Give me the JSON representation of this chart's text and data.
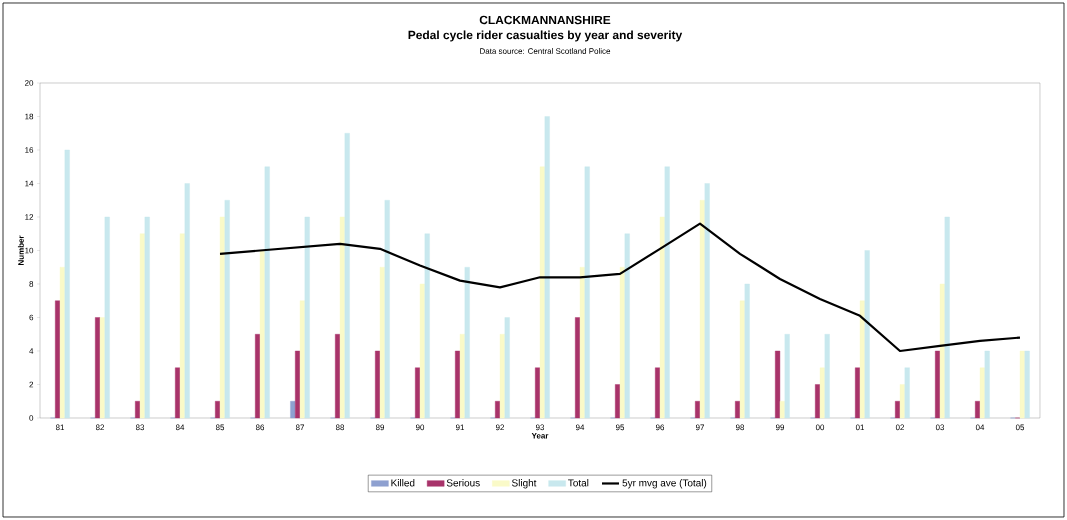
{
  "chart_data": {
    "type": "bar",
    "title": "CLACKMANNANSHIRE",
    "subtitle": "Pedal cycle rider casualties by year and severity",
    "annotations": [
      "Data source: Central Scotland Police"
    ],
    "xlabel": "Year",
    "ylabel": "Number",
    "categories": [
      "81",
      "82",
      "83",
      "84",
      "85",
      "86",
      "87",
      "88",
      "89",
      "90",
      "91",
      "92",
      "93",
      "94",
      "95",
      "96",
      "97",
      "98",
      "99",
      "00",
      "01",
      "02",
      "03",
      "04",
      "05"
    ],
    "series": [
      {
        "name": "Killed",
        "color": "#8ea0d0",
        "values": [
          0,
          0,
          0,
          0,
          0,
          0,
          1,
          0,
          0,
          0,
          0,
          0,
          0,
          0,
          0,
          0,
          0,
          0,
          0,
          0,
          0,
          0,
          0,
          0,
          0
        ]
      },
      {
        "name": "Serious",
        "color": "#a8336a",
        "values": [
          7,
          6,
          1,
          3,
          1,
          5,
          4,
          5,
          4,
          3,
          4,
          1,
          3,
          6,
          2,
          3,
          1,
          1,
          4,
          2,
          3,
          1,
          4,
          1,
          0
        ]
      },
      {
        "name": "Slight",
        "color": "#fafac8",
        "values": [
          9,
          6,
          11,
          11,
          12,
          10,
          7,
          12,
          9,
          8,
          5,
          5,
          15,
          9,
          9,
          12,
          13,
          7,
          1,
          3,
          7,
          2,
          8,
          3,
          4
        ]
      },
      {
        "name": "Total",
        "color": "#c8e8ee",
        "values": [
          16,
          12,
          12,
          14,
          13,
          15,
          12,
          17,
          13,
          11,
          9,
          6,
          18,
          15,
          11,
          15,
          14,
          8,
          5,
          5,
          10,
          3,
          12,
          4,
          4
        ]
      },
      {
        "name": "5yr mvg ave (Total)",
        "type": "line",
        "color": "#000000",
        "values": [
          null,
          null,
          null,
          null,
          9.8,
          10.0,
          10.2,
          10.4,
          10.1,
          9.1,
          8.2,
          7.8,
          8.4,
          8.4,
          8.6,
          10.1,
          11.6,
          9.8,
          8.3,
          7.1,
          6.1,
          4.0,
          4.3,
          4.6,
          4.8
        ]
      }
    ],
    "ylim": [
      0,
      20
    ],
    "yticks": [
      0,
      2,
      4,
      6,
      8,
      10,
      12,
      14,
      16,
      18,
      20
    ],
    "legend": "bottom"
  }
}
